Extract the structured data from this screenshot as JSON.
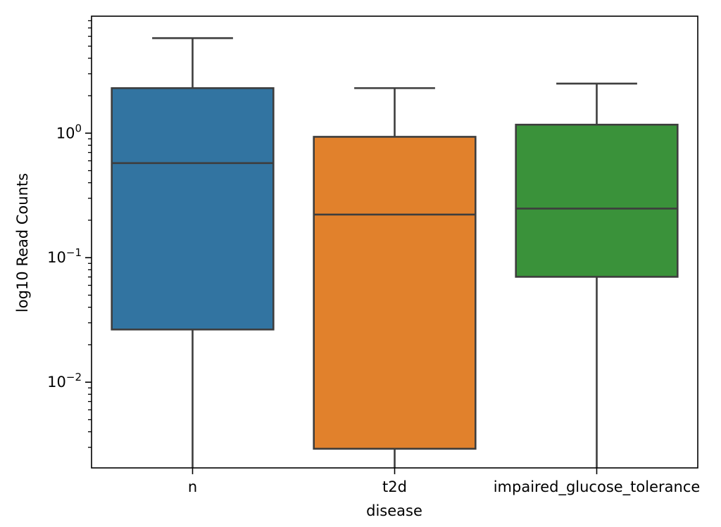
{
  "chart_data": {
    "type": "box",
    "xlabel": "disease",
    "ylabel": "log10 Read Counts",
    "yscale": "log",
    "ylim": [
      0.00205,
      8.7
    ],
    "yticks": [
      {
        "value": 0.01,
        "base": "10",
        "exp": "−2"
      },
      {
        "value": 0.1,
        "base": "10",
        "exp": "−1"
      },
      {
        "value": 1,
        "base": "10",
        "exp": "0"
      }
    ],
    "categories": [
      "n",
      "t2d",
      "impaired_glucose_tolerance"
    ],
    "boxes": [
      {
        "category": "n",
        "color": "#3274a1",
        "whislo": 0.00205,
        "q1": 0.0265,
        "median": 0.575,
        "q3": 2.3,
        "whishi": 5.8
      },
      {
        "category": "t2d",
        "color": "#e1812c",
        "whislo": 0.00205,
        "q1": 0.00292,
        "median": 0.222,
        "q3": 0.935,
        "whishi": 2.3
      },
      {
        "category": "impaired_glucose_tolerance",
        "color": "#3a923a",
        "whislo": 0.00205,
        "q1": 0.0702,
        "median": 0.248,
        "q3": 1.17,
        "whishi": 2.5
      }
    ],
    "grid": false,
    "legend": "none"
  }
}
